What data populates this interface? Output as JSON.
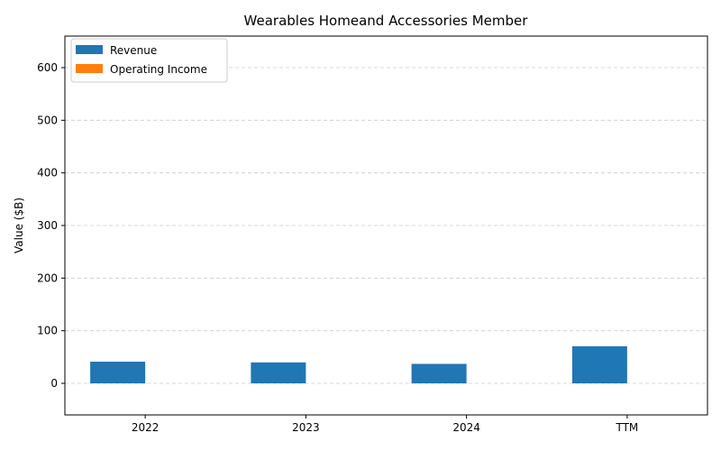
{
  "chart_data": {
    "type": "bar",
    "title": "Wearables Homeand Accessories Member",
    "xlabel": "",
    "ylabel": "Value ($B)",
    "categories": [
      "2022",
      "2023",
      "2024",
      "TTM"
    ],
    "series": [
      {
        "name": "Revenue",
        "values": [
          41.2,
          39.8,
          37.0,
          70.5
        ],
        "color": "#1f77b4"
      },
      {
        "name": "Operating Income",
        "values": [
          0,
          0,
          0,
          0
        ],
        "color": "#ff7f0e"
      }
    ],
    "ylim": [
      -60,
      660
    ],
    "yticks": [
      0,
      100,
      200,
      300,
      400,
      500,
      600
    ],
    "grid": "horizontal-dashed",
    "legend_position": "top-left"
  }
}
